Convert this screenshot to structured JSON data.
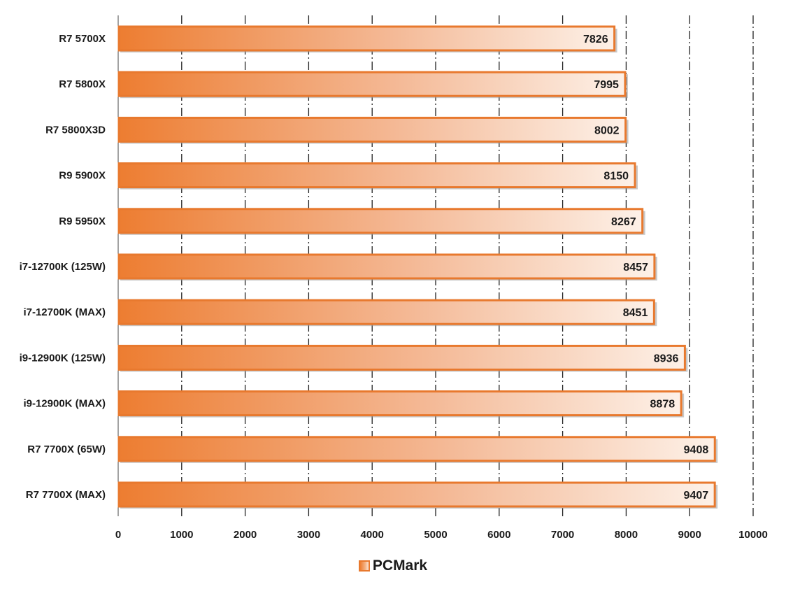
{
  "chart_data": {
    "type": "bar",
    "orientation": "horizontal",
    "categories": [
      "R7 5700X",
      "R7 5800X",
      "R7 5800X3D",
      "R9 5900X",
      "R9 5950X",
      "i7-12700K (125W)",
      "i7-12700K (MAX)",
      "i9-12900K (125W)",
      "i9-12900K (MAX)",
      "R7 7700X (65W)",
      "R7 7700X (MAX)"
    ],
    "series": [
      {
        "name": "PCMark",
        "values": [
          7826,
          7995,
          8002,
          8150,
          8267,
          8457,
          8451,
          8936,
          8878,
          9408,
          9407
        ],
        "color": "#ED7D31"
      }
    ],
    "xlim": [
      0,
      10000
    ],
    "xticks": [
      "0",
      "1000",
      "2000",
      "3000",
      "4000",
      "5000",
      "6000",
      "7000",
      "8000",
      "9000",
      "10000"
    ],
    "grid": "vertical dash-dot",
    "legend_position": "bottom",
    "data_labels": true
  },
  "legend": {
    "label": "PCMark"
  }
}
